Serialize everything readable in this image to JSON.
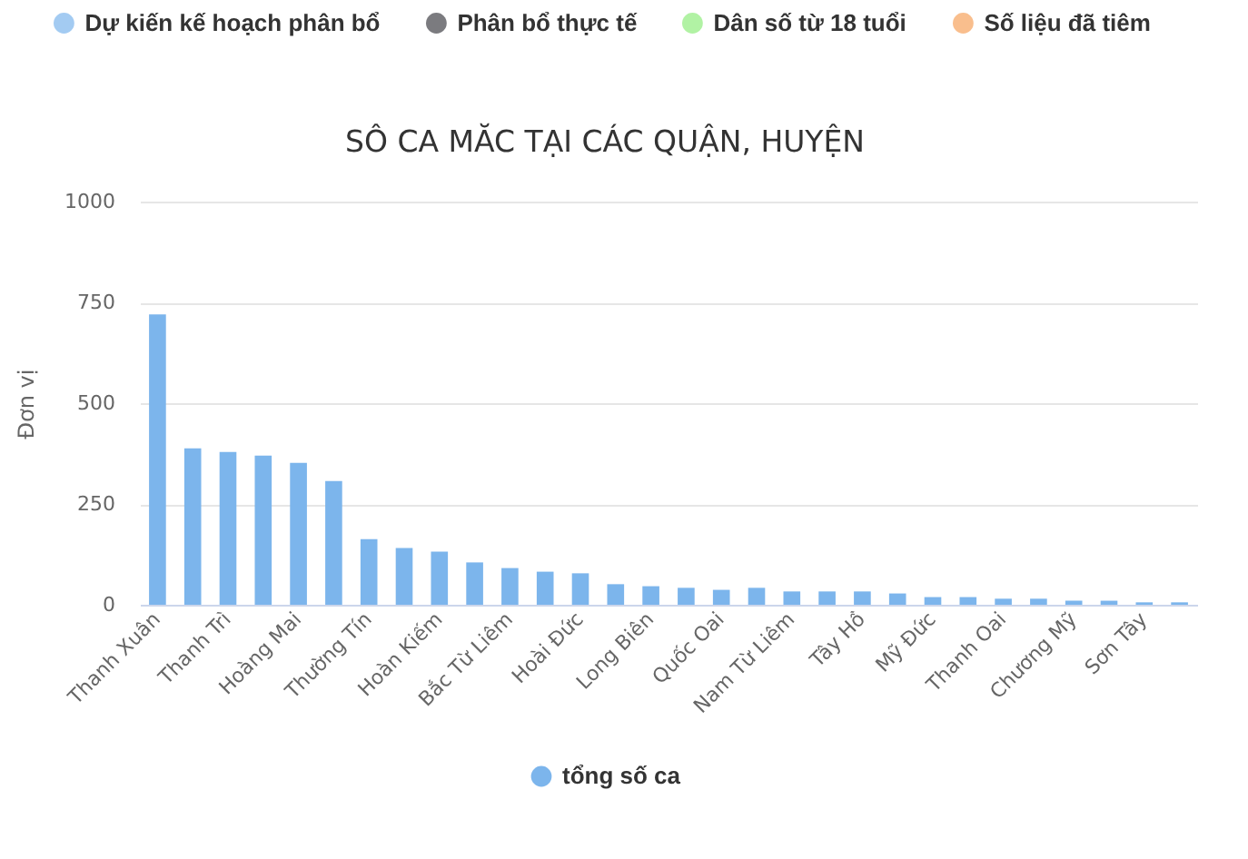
{
  "chart_data": [
    {
      "type": "other",
      "series": [
        {
          "name": "Dự kiến kế hoạch phân bổ",
          "color": "#7cb5ec"
        },
        {
          "name": "Phân bổ thực tế",
          "color": "#434348"
        },
        {
          "name": "Dân số từ 18 tuổi",
          "color": "#90ed7d"
        },
        {
          "name": "Số liệu đã tiêm",
          "color": "#f7a35c"
        }
      ],
      "legend": "top"
    },
    {
      "type": "bar",
      "title": "SÔ CA MĂC TẠI CÁC QUẬN, HUYỆN",
      "ylabel": "Đơn vị",
      "categories": [
        "Thanh Xuân",
        null,
        "Thanh Trì",
        null,
        "Hoàng Mai",
        null,
        "Thường Tín",
        null,
        "Hoàn Kiếm",
        null,
        "Bắc Từ Liêm",
        null,
        "Hoài Đức",
        null,
        "Long Biên",
        null,
        "Quốc Oai",
        null,
        "Nam Từ Liêm",
        null,
        "Tây Hồ",
        null,
        "Mỹ Đức",
        null,
        "Thanh Oai",
        null,
        "Chương Mỹ",
        null,
        "Sơn Tây",
        null
      ],
      "series": [
        {
          "name": "tổng số ca",
          "color": "#7cb5ec",
          "values": [
            720,
            388,
            379,
            370,
            352,
            307,
            163,
            141,
            132,
            105,
            91,
            82,
            78,
            51,
            46,
            42,
            37,
            42,
            33,
            33,
            33,
            28,
            19,
            19,
            15,
            15,
            10,
            10,
            6,
            6
          ]
        }
      ],
      "ylim": [
        0,
        1000
      ],
      "yticks": [
        0,
        250,
        500,
        750,
        1000
      ],
      "grid": "y",
      "legend": "bottom"
    }
  ]
}
